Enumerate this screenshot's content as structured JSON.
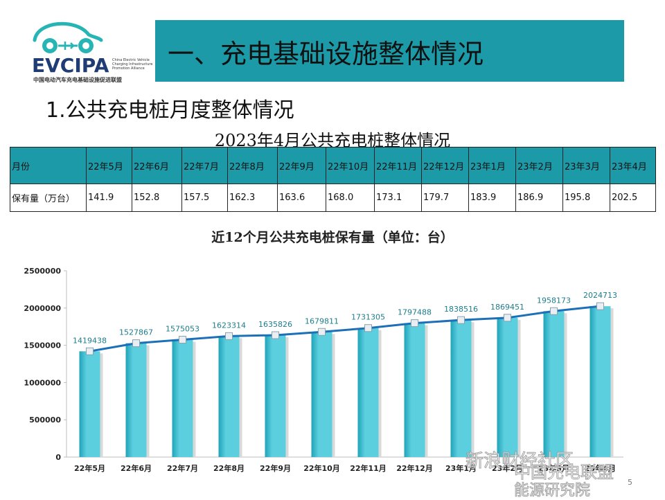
{
  "logo": {
    "mark": "EVCIPA",
    "english": "China Electric Vehicle Charging Infrastructure Promotion Alliance",
    "chinese": "中国电动汽车充电基础设施促进联盟"
  },
  "banner": {
    "title": "一、充电基础设施整体情况"
  },
  "subtitle": "1.公共充电桩月度整体情况",
  "table": {
    "title": "2023年4月公共充电桩整体情况",
    "header_label": "月份",
    "months": [
      "22年5月",
      "22年6月",
      "22年7月",
      "22年8月",
      "22年9月",
      "22年10月",
      "22年11月",
      "22年12月",
      "23年1月",
      "23年2月",
      "23年3月",
      "23年4月"
    ],
    "row_label": "保有量（万台）",
    "values": [
      "141.9",
      "152.8",
      "157.5",
      "162.3",
      "163.6",
      "168.0",
      "173.1",
      "179.7",
      "183.9",
      "186.9",
      "195.8",
      "202.5"
    ]
  },
  "chart_data": {
    "type": "bar",
    "title": "近12个月公共充电桩保有量（单位：台）",
    "categories": [
      "22年5月",
      "22年6月",
      "22年7月",
      "22年8月",
      "22年9月",
      "22年10月",
      "22年11月",
      "22年12月",
      "23年1月",
      "23年2月",
      "23年3月",
      "23年4月"
    ],
    "series": [
      {
        "type": "bar",
        "values": [
          1419438,
          1527867,
          1575053,
          1623314,
          1635826,
          1679811,
          1731305,
          1797488,
          1838516,
          1869451,
          1958173,
          2024713
        ]
      },
      {
        "type": "line",
        "values": [
          1419438,
          1527867,
          1575053,
          1623314,
          1635826,
          1679811,
          1731305,
          1797488,
          1838516,
          1869451,
          1958173,
          2024713
        ]
      }
    ],
    "data_labels": [
      "1419438",
      "1527867",
      "1575053",
      "1623314",
      "1635826",
      "1679811",
      "1731305",
      "1797488",
      "1838516",
      "1869451",
      "1958173",
      "2024713"
    ],
    "ylim": [
      0,
      2500000
    ],
    "yticks": [
      0,
      500000,
      1000000,
      1500000,
      2000000,
      2500000
    ],
    "ytick_labels": [
      "0",
      "500000",
      "1000000",
      "1500000",
      "2000000",
      "2500000"
    ],
    "grid": false,
    "colors": {
      "bar": "#5ccfdf",
      "bar_dark": "#1fa3b9",
      "line": "#1d6fb8"
    }
  },
  "page_number": "5",
  "watermark": {
    "top": "中国充电联盟",
    "bottom": "能源研究院",
    "middle": "新浪财经社区"
  }
}
